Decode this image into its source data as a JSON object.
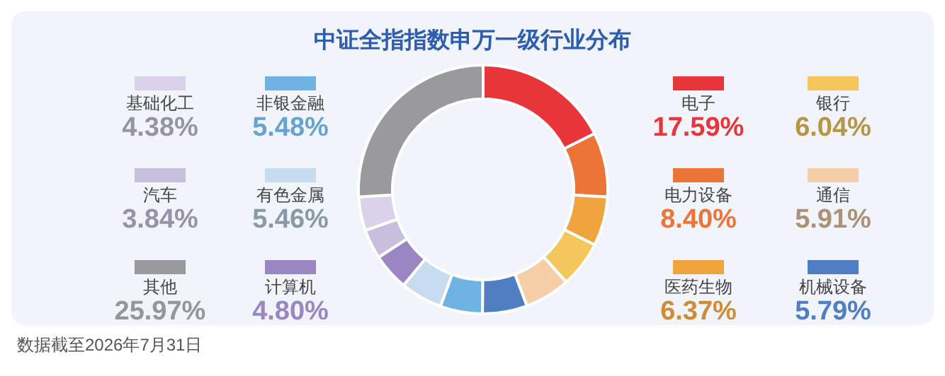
{
  "chart_data": {
    "type": "donut",
    "title": "中证全指指数申万一级行业分布",
    "categories": [
      "电子",
      "电力设备",
      "医药生物",
      "银行",
      "通信",
      "机械设备",
      "非银金融",
      "有色金属",
      "计算机",
      "汽车",
      "基础化工",
      "其他"
    ],
    "values": [
      17.59,
      8.4,
      6.37,
      6.04,
      5.91,
      5.79,
      5.48,
      5.46,
      4.8,
      3.84,
      4.38,
      25.97
    ],
    "value_labels": [
      "17.59%",
      "8.40%",
      "6.37%",
      "6.04%",
      "5.91%",
      "5.79%",
      "5.48%",
      "5.46%",
      "4.80%",
      "3.84%",
      "4.38%",
      "25.97%"
    ],
    "colors": [
      "#e8353a",
      "#ec7437",
      "#f0a43e",
      "#f3c75c",
      "#f6cfa8",
      "#4f7fc2",
      "#6fb3e4",
      "#c7dcef",
      "#9b86c4",
      "#c8bfdf",
      "#d9d2ea",
      "#9a9a9c"
    ],
    "legend": "top right",
    "annotations": [
      "数据截至2026年7月31日"
    ]
  }
}
